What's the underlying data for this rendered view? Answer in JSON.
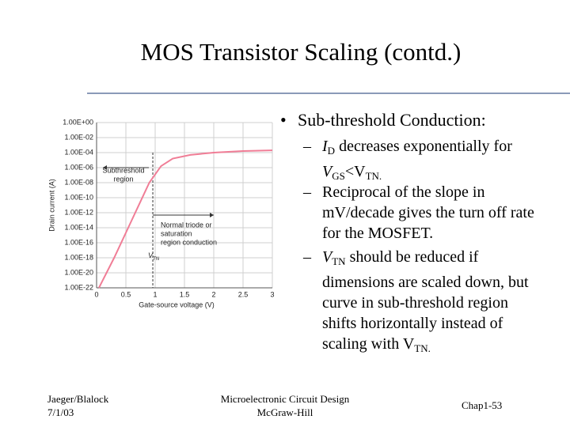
{
  "header": {
    "title": "MOS Transistor Scaling (contd.)"
  },
  "bullets": {
    "main": "Sub-threshold Conduction:",
    "items": [
      [
        "I",
        "D",
        " decreases exponentially for ",
        "V",
        "GS",
        "<V",
        "TN."
      ],
      [
        "Reciprocal of the slope in mV/decade gives the turn off rate for the MOSFET."
      ],
      [
        "V",
        "TN",
        " should be reduced if dimensions are scaled down, but curve in sub-threshold region shifts horizontally instead of scaling with V",
        "TN."
      ]
    ]
  },
  "footer": {
    "left": [
      "Jaeger/Blalock",
      "7/1/03"
    ],
    "center": [
      "Microelectronic Circuit Design",
      "McGraw-Hill"
    ],
    "right": "Chap1-53"
  },
  "chart_data": {
    "type": "line",
    "xlabel": "Gate-source voltage (V)",
    "ylabel": "Drain current (A)",
    "log_y": true,
    "grid": true,
    "x": [
      0.04,
      0.3,
      0.6,
      0.9,
      1.1,
      1.3,
      1.6,
      2,
      2.5,
      3
    ],
    "series": [
      {
        "color": "#f07d96",
        "values": [
          1e-22,
          1e-18,
          1e-13,
          1e-08,
          1.6e-06,
          1.6e-05,
          5e-05,
          0.0001,
          0.00016,
          0.0002
        ]
      }
    ],
    "xlim": [
      0,
      3
    ],
    "ylim": [
      1e-22,
      1
    ],
    "xticks": [
      0,
      0.5,
      1,
      1.5,
      2,
      2.5,
      3
    ],
    "yticks": [
      {
        "value": 1,
        "label": "1.00E+00"
      },
      {
        "value": 0.01,
        "label": "1.00E-02"
      },
      {
        "value": 0.0001,
        "label": "1.00E-04"
      },
      {
        "value": 1e-06,
        "label": "1.00E-06"
      },
      {
        "value": 1e-08,
        "label": "1.00E-08"
      },
      {
        "value": 1e-10,
        "label": "1.00E-10"
      },
      {
        "value": 1e-12,
        "label": "1.00E-12"
      },
      {
        "value": 1e-14,
        "label": "1.00E-14"
      },
      {
        "value": 1e-16,
        "label": "1.00E-16"
      },
      {
        "value": 1e-18,
        "label": "1.00E-18"
      },
      {
        "value": 1e-20,
        "label": "1.00E-20"
      },
      {
        "value": 1e-22,
        "label": "1.00E-22"
      }
    ],
    "vtn_x": 0.96,
    "annotations": {
      "subthreshold": [
        "Subthreshold",
        "region"
      ],
      "normal": [
        "Normal triode or",
        "saturation",
        "region conduction"
      ],
      "vtn": [
        "V",
        "TN"
      ]
    }
  }
}
